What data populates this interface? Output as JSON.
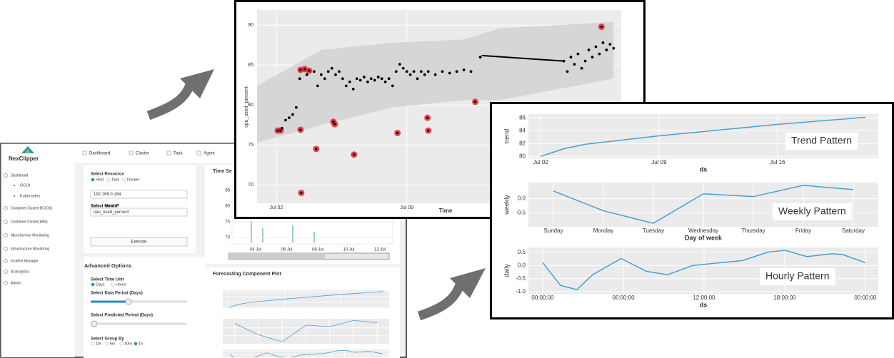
{
  "dashboard": {
    "logo": "NexClipper",
    "nav": [
      "Dashboard",
      "Cluster",
      "Task",
      "Agent"
    ],
    "sidebar": [
      "Dashboard",
      "GCOI",
      "Kubernetes",
      "Container Cluster(DC/OS)",
      "Container Cluster(K8S)",
      "MicroService Monitoring",
      "Infrastructure Monitoring",
      "Incident Manager",
      "AI Analytics",
      "Admin"
    ],
    "resource": {
      "label": "Select Resource",
      "options": [
        "Host",
        "Task",
        "Docker"
      ],
      "host_label": "Select Host IP",
      "host": "192.168.0.164",
      "metric_label": "Select Metric",
      "metric": "cpu_used_percent",
      "button": "Execute"
    },
    "advanced": {
      "title": "Advanced Options",
      "time_unit_label": "Select Time Unit",
      "time_units": [
        "Days",
        "Hours"
      ],
      "data_period_label": "Select Data Period (Days)",
      "predicted_period_label": "Select Predicted Period (Days)",
      "group_by_label": "Select Group By",
      "group_by": [
        "1m",
        "5m",
        "10m",
        "1h"
      ]
    },
    "time_series": {
      "title": "Time Se",
      "yticks": [
        85,
        80,
        75,
        70
      ],
      "xticks": [
        "04 Jul",
        "06 Jul",
        "08 Jul",
        "10 Jul",
        "12 Jul"
      ]
    },
    "forecast": {
      "title": "Forecasting Component Plot"
    }
  },
  "chart_data": [
    {
      "type": "scatter",
      "xlabel": "Time",
      "ylabel": "cpu_used_percent",
      "xlim": [
        0.97,
        20.5
      ],
      "ylim": [
        67.7,
        91.9
      ],
      "xticks": [
        {
          "value": 2,
          "label": "Jul 02"
        },
        {
          "value": 9,
          "label": "Jul 09"
        }
      ],
      "yticks": [
        70,
        75,
        80,
        85,
        90
      ],
      "grid": true,
      "band": {
        "color": "#d6d6d6",
        "x": [
          0.97,
          4.41,
          8.24,
          12.06,
          13.97,
          20.09
        ],
        "lower": [
          75.3,
          77.5,
          79.7,
          80.6,
          80.6,
          83.3
        ],
        "upper": [
          82.4,
          86.9,
          87.8,
          88.2,
          89.6,
          90.4
        ]
      },
      "points": {
        "color": "#000000",
        "x": [
          2.31,
          2.5,
          2.69,
          2.88,
          3.07,
          3.26,
          3.64,
          4.03,
          4.22,
          4.41,
          4.6,
          4.79,
          4.98,
          5.18,
          5.37,
          5.56,
          5.75,
          5.94,
          6.13,
          6.32,
          6.51,
          6.71,
          6.9,
          7.09,
          7.28,
          7.47,
          7.66,
          7.85,
          8.04,
          8.24,
          8.43,
          8.62,
          8.81,
          9.0,
          9.19,
          9.38,
          9.57,
          9.77,
          9.96,
          10.15,
          10.53,
          10.91,
          11.3,
          11.68,
          12.06,
          12.44,
          12.94,
          17.42,
          17.61,
          17.8,
          17.99,
          18.18,
          18.38,
          18.57,
          18.76,
          18.95,
          19.14,
          19.33,
          19.52,
          19.71,
          19.9,
          20.09
        ],
        "y": [
          77.1,
          78.1,
          78.4,
          78.8,
          79.7,
          83.3,
          83.8,
          84.2,
          82.4,
          83.8,
          83.3,
          84.2,
          84.6,
          83.8,
          84.2,
          83.3,
          82.4,
          82.9,
          82.0,
          83.3,
          83.1,
          83.5,
          82.9,
          83.3,
          83.1,
          83.5,
          83.3,
          82.9,
          83.3,
          82.4,
          84.2,
          85.1,
          84.6,
          84.2,
          83.8,
          84.2,
          83.3,
          84.2,
          83.8,
          84.2,
          83.8,
          84.2,
          84.0,
          84.2,
          84.4,
          84.2,
          86.0,
          85.5,
          84.2,
          86.0,
          85.1,
          86.4,
          84.6,
          85.5,
          86.9,
          86.0,
          87.3,
          86.4,
          87.8,
          86.9,
          87.6,
          87.1
        ]
      },
      "connector": {
        "color": "#000000",
        "x": [
          13.02,
          17.42
        ],
        "y": [
          86.2,
          85.5
        ]
      },
      "anomalies": {
        "color": "#e8262a",
        "x": [
          2.08,
          2.23,
          3.3,
          3.53,
          3.76,
          3.3,
          5.06,
          5.14,
          4.14,
          3.34,
          6.17,
          8.5,
          10.11,
          10.15,
          12.67,
          19.44
        ],
        "y": [
          76.8,
          76.8,
          84.4,
          84.5,
          84.3,
          76.9,
          77.9,
          77.6,
          74.5,
          69.0,
          73.8,
          76.5,
          78.4,
          76.8,
          80.4,
          89.8
        ]
      }
    },
    {
      "type": "line",
      "color": "#4a9fd0",
      "panels": [
        {
          "ylabel": "trend",
          "xlabel": "ds",
          "annotation": "Trend Pattern",
          "xlim": [
            1.28,
            21.96
          ],
          "ylim": [
            79.7,
            86.6
          ],
          "xticks": [
            {
              "value": 2,
              "label": "Jul 02"
            },
            {
              "value": 9,
              "label": "Jul 09"
            },
            {
              "value": 16,
              "label": "Jul 16"
            }
          ],
          "yticks": [
            80,
            82,
            84,
            86
          ],
          "x": [
            2,
            3.39,
            4.66,
            9,
            16,
            21.2
          ],
          "values": [
            80.0,
            81.2,
            81.9,
            83.2,
            85.0,
            86.1
          ]
        },
        {
          "ylabel": "weekly",
          "xlabel": "Day of week",
          "annotation": "Weekly Pattern",
          "ylim": [
            -1.0,
            0.575
          ],
          "yticks": [
            -0.5,
            {
              "value": 0,
              "label": "0.0"
            }
          ],
          "categories": [
            "Sunday",
            "Monday",
            "Tuesday",
            "Wednesday",
            "Thursday",
            "Friday",
            "Saturday"
          ],
          "values": [
            0.275,
            -0.43,
            -0.875,
            0.175,
            0.075,
            0.475,
            0.325
          ]
        },
        {
          "ylabel": "daily",
          "xlabel": "ds",
          "annotation": "Hourly Pattern",
          "xlim": [
            -1.06,
            24.96
          ],
          "ylim": [
            -1.08,
            0.69
          ],
          "xticks": [
            {
              "value": 0,
              "label": "00:00:00"
            },
            {
              "value": 6,
              "label": "06:00:00"
            },
            {
              "value": 12,
              "label": "12:00:00"
            },
            {
              "value": 18,
              "label": "18:00:00"
            },
            {
              "value": 24,
              "label": "00:00:00"
            }
          ],
          "yticks": [
            {
              "value": -1,
              "label": "-1.0"
            },
            -0.5,
            {
              "value": 0,
              "label": "0.0"
            },
            0.5
          ],
          "x": [
            0,
            1.33,
            2.55,
            3.72,
            5.84,
            7.7,
            9.29,
            11.15,
            13.28,
            14.87,
            16.73,
            18.05,
            19.65,
            21.51,
            22.3,
            24.0
          ],
          "values": [
            0.11,
            -0.76,
            -0.92,
            -0.35,
            0.27,
            -0.22,
            -0.35,
            0.0,
            0.11,
            0.19,
            0.51,
            0.58,
            0.34,
            0.45,
            0.42,
            0.11
          ]
        }
      ]
    }
  ]
}
